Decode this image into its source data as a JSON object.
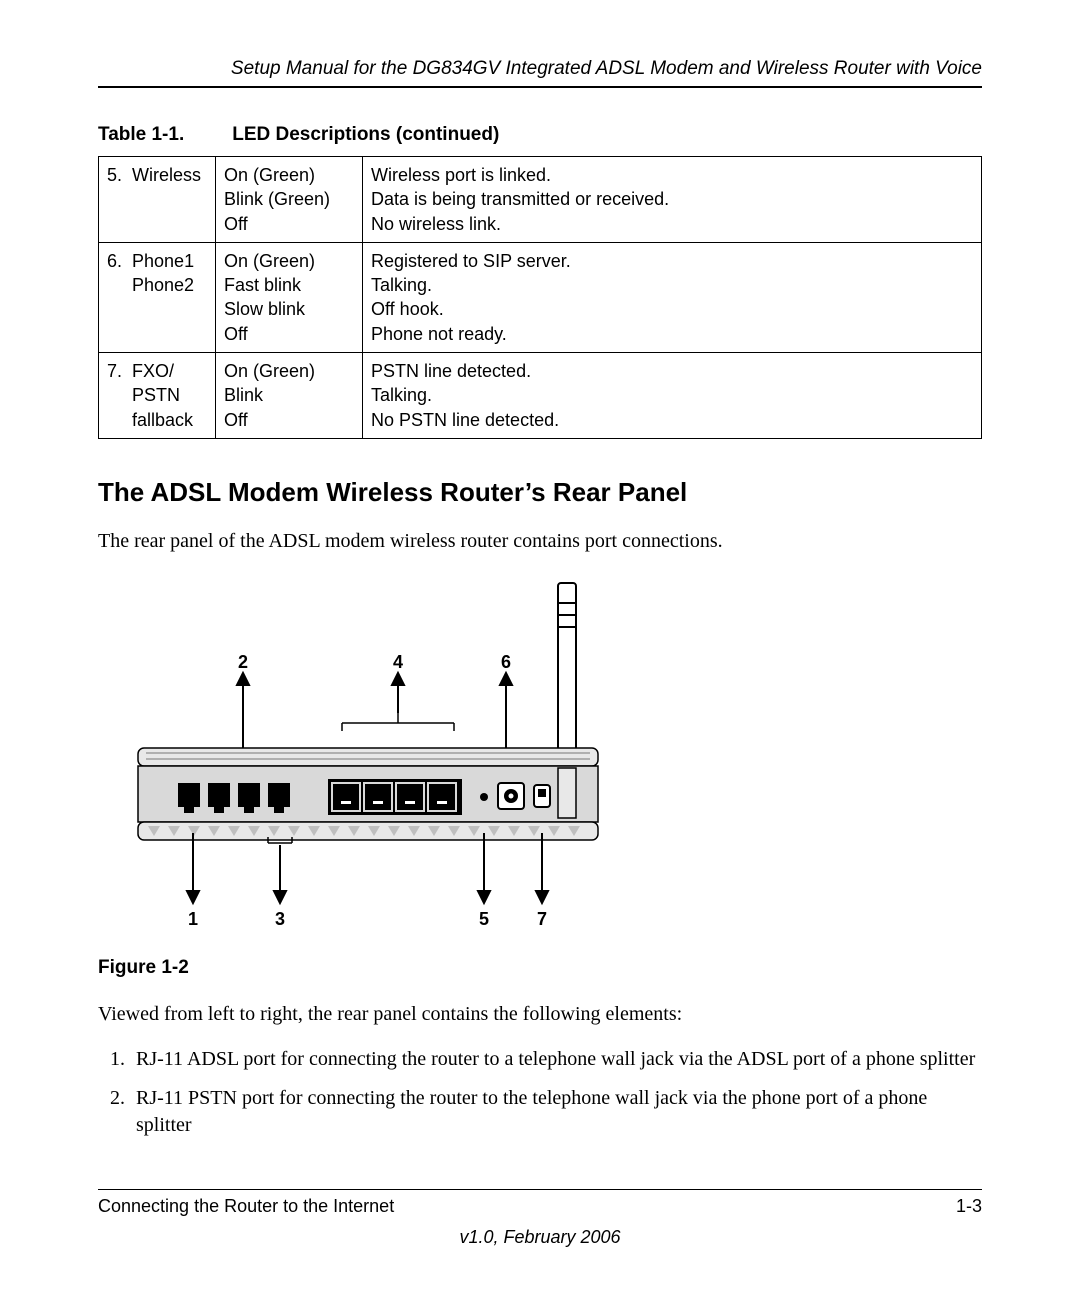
{
  "header": "Setup Manual for the DG834GV Integrated ADSL Modem and Wireless Router with Voice",
  "table_caption_prefix": "Table 1-1.",
  "table_caption_title": "LED Descriptions  (continued)",
  "table_rows": [
    {
      "num": "5.",
      "name": "Wireless",
      "states": "On (Green)\nBlink (Green)\nOff",
      "desc": "Wireless port is linked.\nData is being transmitted or received.\nNo wireless link."
    },
    {
      "num": "6.",
      "name": "Phone1\nPhone2",
      "states": "On (Green)\nFast blink\nSlow blink\nOff",
      "desc": "Registered to SIP server.\nTalking.\nOff hook.\nPhone not ready."
    },
    {
      "num": "7.",
      "name": "FXO/\nPSTN\nfallback",
      "states": "On (Green)\nBlink\nOff",
      "desc": "PSTN line detected.\nTalking.\nNo PSTN line detected."
    }
  ],
  "section_heading": "The ADSL Modem Wireless Router’s Rear Panel",
  "section_intro": "The rear panel of the ADSL modem wireless router contains port connections.",
  "figure": {
    "caption": "Figure 1-2",
    "top_labels": [
      "2",
      "4",
      "6"
    ],
    "bottom_labels": [
      "1",
      "3",
      "5",
      "7"
    ]
  },
  "elements_intro": "Viewed from left to right, the rear panel contains the following elements:",
  "elements_list": [
    "RJ-11 ADSL port for connecting the router to a telephone wall jack via the ADSL port of a phone splitter",
    "RJ-11 PSTN port for connecting the router to the telephone wall jack via the phone port of a phone splitter"
  ],
  "footer": {
    "left": "Connecting the Router to the Internet",
    "right": "1-3",
    "version": "v1.0, February 2006"
  },
  "colors": {
    "text": "#000000",
    "bg": "#ffffff",
    "router_fill": "#d9d9d9",
    "router_stroke": "#000000",
    "port_fill": "#000000"
  }
}
